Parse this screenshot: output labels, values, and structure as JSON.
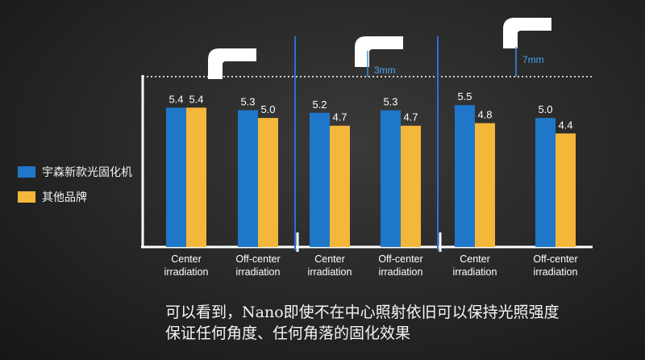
{
  "chart_data": {
    "type": "bar",
    "groups": [
      {
        "categories": [
          "Center\nirradiation",
          "Off-center\nirradiation"
        ],
        "distance_label": ""
      },
      {
        "categories": [
          "Center\nirradiation",
          "Off-center\nirradiation"
        ],
        "distance_label": "3mm"
      },
      {
        "categories": [
          "Center\nirradiation",
          "Off-center\nirradiation"
        ],
        "distance_label": "7mm"
      }
    ],
    "series": [
      {
        "name": "宇森新款光固化机",
        "color": "#1f77c9",
        "values": [
          5.4,
          5.3,
          5.2,
          5.3,
          5.5,
          5.0
        ]
      },
      {
        "name": "其他品牌",
        "color": "#f4b73a",
        "values": [
          5.4,
          5.0,
          4.7,
          4.7,
          4.8,
          4.4
        ]
      }
    ],
    "ylim": [
      0,
      6.6
    ],
    "legend_position": "left"
  },
  "caption": {
    "line1": "可以看到，Nano即使不在中心照射依旧可以保持光照强度",
    "line2": "保证任何角度、任何角落的固化效果"
  }
}
